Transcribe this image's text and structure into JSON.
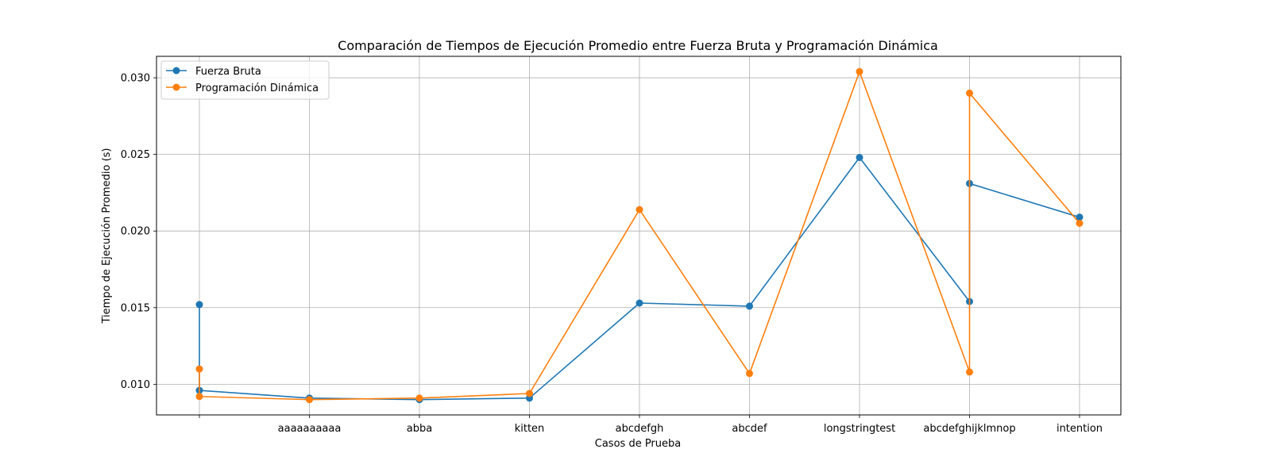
{
  "chart_data": {
    "type": "line",
    "title": "Comparación de Tiempos de Ejecución Promedio entre Fuerza Bruta y Programación Dinámica",
    "xlabel": "Casos de Prueba",
    "ylabel": "Tiempo de Ejecución Promedio (s)",
    "categories": [
      "",
      "aaaaaaaaaa",
      "abba",
      "kitten",
      "abcdefgh",
      "abcdef",
      "longstringtest",
      "abcdefghijklmnop",
      "intention"
    ],
    "ylim": [
      0.008,
      0.0314
    ],
    "yticks": [
      0.01,
      0.015,
      0.02,
      0.025,
      0.03
    ],
    "ytick_labels": [
      "0.010",
      "0.015",
      "0.020",
      "0.025",
      "0.030"
    ],
    "grid": true,
    "legend_position": "top-left",
    "series": [
      {
        "name": "Fuerza Bruta",
        "color": "#1f77b4",
        "points": [
          {
            "x": "",
            "y": 0.0152
          },
          {
            "x": "",
            "y": 0.0096
          },
          {
            "x": "aaaaaaaaaa",
            "y": 0.0091
          },
          {
            "x": "abba",
            "y": 0.009
          },
          {
            "x": "kitten",
            "y": 0.0091
          },
          {
            "x": "abcdefgh",
            "y": 0.0153
          },
          {
            "x": "abcdef",
            "y": 0.0151
          },
          {
            "x": "longstringtest",
            "y": 0.0248
          },
          {
            "x": "abcdefghijklmnop",
            "y": 0.0154
          },
          {
            "x": "abcdefghijklmnop",
            "y": 0.0231
          },
          {
            "x": "intention",
            "y": 0.0209
          }
        ]
      },
      {
        "name": "Programación Dinámica",
        "color": "#ff7f0e",
        "points": [
          {
            "x": "",
            "y": 0.011
          },
          {
            "x": "",
            "y": 0.0092
          },
          {
            "x": "aaaaaaaaaa",
            "y": 0.009
          },
          {
            "x": "abba",
            "y": 0.0091
          },
          {
            "x": "kitten",
            "y": 0.0094
          },
          {
            "x": "abcdefgh",
            "y": 0.0214
          },
          {
            "x": "abcdef",
            "y": 0.0107
          },
          {
            "x": "longstringtest",
            "y": 0.0304
          },
          {
            "x": "abcdefghijklmnop",
            "y": 0.0108
          },
          {
            "x": "abcdefghijklmnop",
            "y": 0.029
          },
          {
            "x": "intention",
            "y": 0.0205
          }
        ]
      }
    ]
  }
}
